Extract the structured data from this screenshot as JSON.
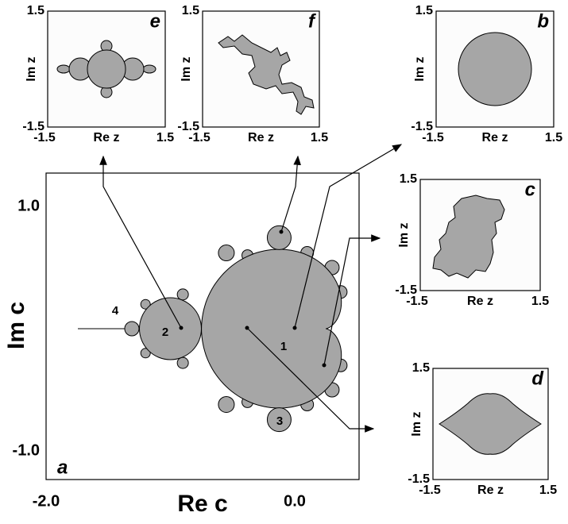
{
  "main": {
    "label": "a",
    "x_label": "Re c",
    "y_label": "Im c",
    "x_ticks": [
      "-2.0",
      "0.0"
    ],
    "y_ticks": [
      "1.0",
      "-1.0"
    ],
    "region_labels": [
      "1",
      "2",
      "3",
      "4"
    ]
  },
  "insets": [
    {
      "label": "e",
      "x_label": "Re z",
      "y_label": "Im z",
      "x_ticks": [
        "-1.5",
        "1.5"
      ],
      "y_ticks": [
        "1.5",
        "-1.5"
      ]
    },
    {
      "label": "f",
      "x_label": "Re z",
      "y_label": "Im z",
      "x_ticks": [
        "-1.5",
        "1.5"
      ],
      "y_ticks": [
        "1.5",
        "-1.5"
      ]
    },
    {
      "label": "b",
      "x_label": "Re z",
      "y_label": "Im z",
      "x_ticks": [
        "-1.5",
        "1.5"
      ],
      "y_ticks": [
        "1.5",
        "-1.5"
      ]
    },
    {
      "label": "c",
      "x_label": "Re z",
      "y_label": "Im z",
      "x_ticks": [
        "-1.5",
        "1.5"
      ],
      "y_ticks": [
        "1.5",
        "-1.5"
      ]
    },
    {
      "label": "d",
      "x_label": "Re z",
      "y_label": "Im z",
      "x_ticks": [
        "-1.5",
        "1.5"
      ],
      "y_ticks": [
        "1.5",
        "-1.5"
      ]
    }
  ]
}
